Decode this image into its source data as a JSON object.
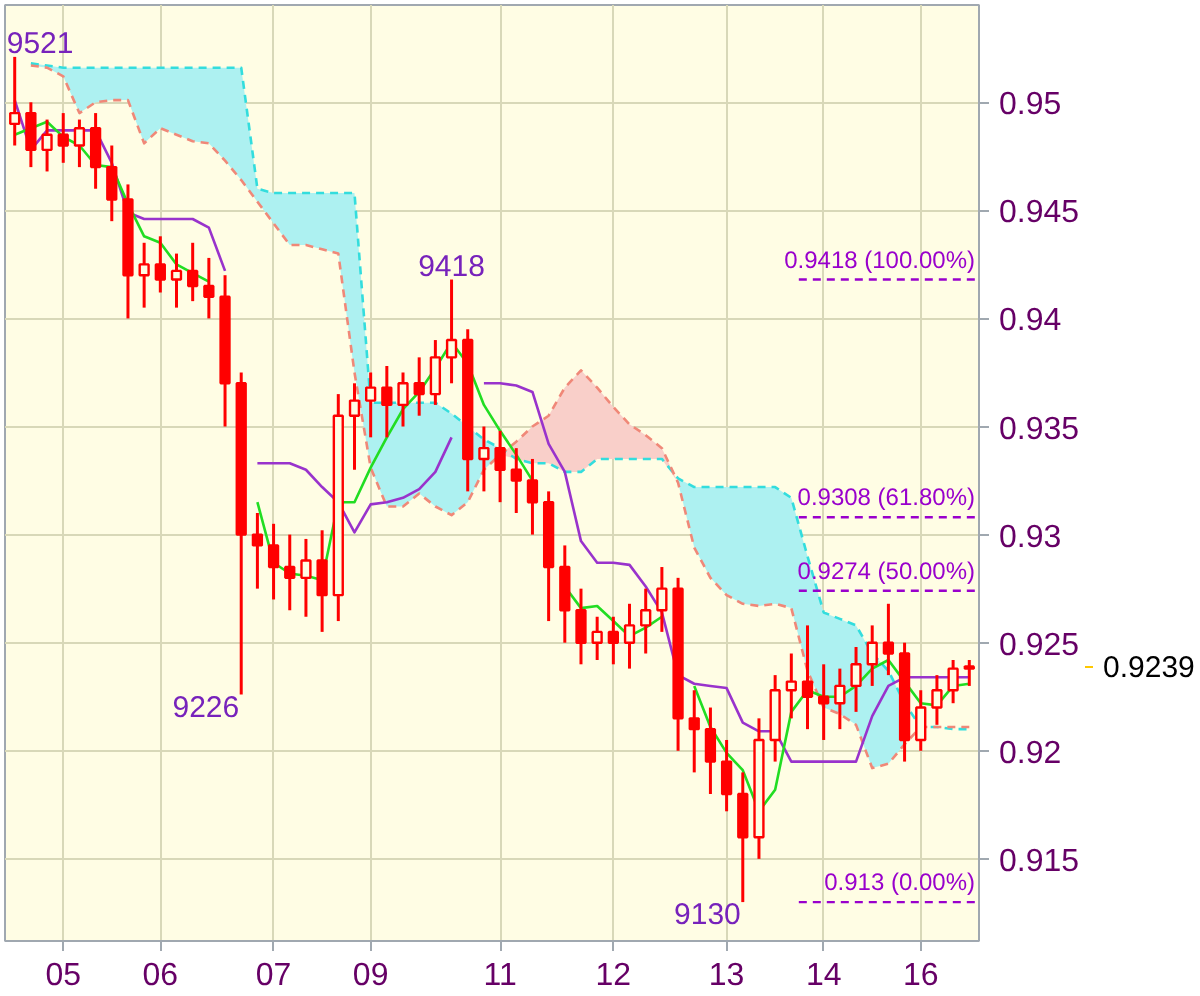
{
  "chart_data": {
    "type": "candlestick",
    "categories": [
      null,
      null,
      null,
      "05",
      null,
      null,
      null,
      null,
      null,
      "06",
      null,
      null,
      null,
      null,
      null,
      null,
      "07",
      null,
      null,
      null,
      null,
      null,
      "09",
      null,
      null,
      null,
      null,
      null,
      null,
      null,
      "11",
      null,
      null,
      null,
      null,
      null,
      null,
      "12",
      null,
      null,
      null,
      null,
      null,
      null,
      "13",
      null,
      null,
      null,
      null,
      null,
      "14",
      null,
      null,
      null,
      null,
      null,
      "16",
      null,
      null,
      null
    ],
    "ohlc": [
      [
        0.949,
        0.9521,
        0.948,
        0.9495
      ],
      [
        0.9495,
        0.95,
        0.947,
        0.9478
      ],
      [
        0.9478,
        0.9492,
        0.9468,
        0.9485
      ],
      [
        0.9485,
        0.9495,
        0.9472,
        0.948
      ],
      [
        0.948,
        0.9492,
        0.947,
        0.9488
      ],
      [
        0.9488,
        0.9495,
        0.946,
        0.947
      ],
      [
        0.947,
        0.948,
        0.9445,
        0.9455
      ],
      [
        0.9455,
        0.9462,
        0.94,
        0.942
      ],
      [
        0.942,
        0.9435,
        0.9405,
        0.9425
      ],
      [
        0.9425,
        0.9438,
        0.9412,
        0.9418
      ],
      [
        0.9418,
        0.943,
        0.9405,
        0.9422
      ],
      [
        0.9422,
        0.9435,
        0.9408,
        0.9415
      ],
      [
        0.9415,
        0.9428,
        0.94,
        0.941
      ],
      [
        0.941,
        0.942,
        0.935,
        0.937
      ],
      [
        0.937,
        0.9375,
        0.9226,
        0.93
      ],
      [
        0.93,
        0.931,
        0.9275,
        0.9295
      ],
      [
        0.9295,
        0.9305,
        0.927,
        0.9285
      ],
      [
        0.9285,
        0.93,
        0.9265,
        0.928
      ],
      [
        0.928,
        0.9298,
        0.9262,
        0.9288
      ],
      [
        0.9288,
        0.9302,
        0.9255,
        0.9272
      ],
      [
        0.9272,
        0.9365,
        0.926,
        0.9355
      ],
      [
        0.9355,
        0.937,
        0.933,
        0.9362
      ],
      [
        0.9362,
        0.9375,
        0.9345,
        0.9368
      ],
      [
        0.9368,
        0.9378,
        0.9345,
        0.936
      ],
      [
        0.936,
        0.9375,
        0.935,
        0.937
      ],
      [
        0.937,
        0.9382,
        0.9355,
        0.9365
      ],
      [
        0.9365,
        0.939,
        0.936,
        0.9382
      ],
      [
        0.9382,
        0.9418,
        0.937,
        0.939
      ],
      [
        0.939,
        0.9395,
        0.932,
        0.9335
      ],
      [
        0.9335,
        0.935,
        0.932,
        0.934
      ],
      [
        0.934,
        0.9348,
        0.9315,
        0.933
      ],
      [
        0.933,
        0.934,
        0.931,
        0.9325
      ],
      [
        0.9325,
        0.9335,
        0.93,
        0.9315
      ],
      [
        0.9315,
        0.932,
        0.926,
        0.9285
      ],
      [
        0.9285,
        0.9295,
        0.925,
        0.9265
      ],
      [
        0.9265,
        0.9275,
        0.924,
        0.925
      ],
      [
        0.925,
        0.9262,
        0.9242,
        0.9255
      ],
      [
        0.9255,
        0.9262,
        0.924,
        0.925
      ],
      [
        0.925,
        0.9268,
        0.9238,
        0.9258
      ],
      [
        0.9258,
        0.9275,
        0.9245,
        0.9265
      ],
      [
        0.9265,
        0.9285,
        0.9255,
        0.9275
      ],
      [
        0.9275,
        0.928,
        0.92,
        0.9215
      ],
      [
        0.9215,
        0.9228,
        0.919,
        0.921
      ],
      [
        0.921,
        0.922,
        0.918,
        0.9195
      ],
      [
        0.9195,
        0.9205,
        0.9172,
        0.918
      ],
      [
        0.918,
        0.919,
        0.913,
        0.916
      ],
      [
        0.916,
        0.9215,
        0.915,
        0.9205
      ],
      [
        0.9205,
        0.9235,
        0.9195,
        0.9228
      ],
      [
        0.9228,
        0.9245,
        0.9215,
        0.9232
      ],
      [
        0.9232,
        0.9258,
        0.921,
        0.9225
      ],
      [
        0.9225,
        0.924,
        0.9205,
        0.9222
      ],
      [
        0.9222,
        0.9238,
        0.921,
        0.923
      ],
      [
        0.923,
        0.9248,
        0.9218,
        0.924
      ],
      [
        0.924,
        0.9258,
        0.923,
        0.925
      ],
      [
        0.925,
        0.9268,
        0.9235,
        0.9245
      ],
      [
        0.9245,
        0.925,
        0.9195,
        0.9205
      ],
      [
        0.9205,
        0.9228,
        0.92,
        0.922
      ],
      [
        0.922,
        0.9235,
        0.9212,
        0.9228
      ],
      [
        0.9228,
        0.9242,
        0.9222,
        0.9238
      ],
      [
        0.9238,
        0.9242,
        0.923,
        0.9239
      ]
    ],
    "color": "#ff0000",
    "series": [
      {
        "type": "line",
        "color": "#33dddd",
        "line_style": "dashed",
        "values": [
          null,
          0.9518,
          0.9517,
          0.9516,
          0.9516,
          0.9516,
          0.9516,
          0.9516,
          0.9516,
          0.9516,
          0.9516,
          0.9516,
          0.9516,
          0.9516,
          0.9516,
          0.946,
          0.9458,
          0.9458,
          0.9458,
          0.9458,
          0.9458,
          0.9458,
          0.9361,
          0.9361,
          0.9361,
          0.9361,
          0.9361,
          0.9356,
          0.935,
          0.9344,
          0.934,
          0.9335,
          0.9333,
          0.9333,
          0.9329,
          0.9329,
          0.9335,
          0.9335,
          0.9335,
          0.9335,
          0.9335,
          0.9326,
          0.9322,
          0.9322,
          0.9322,
          0.9322,
          0.9322,
          0.9322,
          0.9317,
          0.929,
          0.9264,
          0.9261,
          0.9258,
          0.9245,
          0.9237,
          0.9222,
          0.9211,
          0.9211,
          0.921,
          0.921
        ],
        "upper": [
          null,
          0.9518,
          0.9517,
          0.9516,
          0.9516,
          0.9516,
          0.9516,
          0.9516,
          0.9516,
          0.9516,
          0.9516,
          0.9516,
          0.9516,
          0.9516,
          0.9516,
          0.946,
          0.9458,
          0.9458,
          0.9458,
          0.9458,
          0.9458,
          0.9458,
          0.9361,
          0.9361,
          0.9361,
          0.9361,
          0.9361,
          0.9356,
          0.935,
          0.9344,
          0.934,
          null,
          null,
          null,
          null,
          null,
          null,
          null,
          null,
          null,
          null,
          0.9326,
          0.9322,
          0.9322,
          0.9322,
          0.9322,
          0.9322,
          0.9322,
          0.9317,
          0.929,
          0.9264,
          0.9261,
          0.9258,
          0.9245,
          0.9237,
          0.9222,
          null,
          null,
          null,
          null
        ],
        "lower": [
          null,
          0.9517,
          0.9516,
          0.9512,
          0.9495,
          0.95,
          0.9501,
          0.9501,
          0.9481,
          0.9488,
          0.9485,
          0.9482,
          0.9481,
          0.9473,
          0.9464,
          0.9454,
          0.9444,
          0.9434,
          0.9434,
          0.9432,
          0.943,
          0.9375,
          0.9331,
          0.9313,
          0.9313,
          0.9319,
          0.9313,
          0.9309,
          0.9315,
          0.933,
          0.9337,
          null,
          null,
          null,
          null,
          null,
          null,
          null,
          null,
          null,
          null,
          0.9324,
          0.9294,
          0.928,
          0.9272,
          0.9268,
          0.9267,
          0.9268,
          0.9266,
          0.9237,
          0.922,
          0.9217,
          0.9212,
          0.9192,
          0.9194,
          0.9203,
          null,
          null,
          null,
          null
        ]
      },
      {
        "type": "line",
        "color": "#f08878",
        "line_style": "dashed",
        "values": [
          null,
          0.9517,
          0.9516,
          0.9512,
          0.9495,
          0.95,
          0.9501,
          0.9501,
          0.9481,
          0.9488,
          0.9485,
          0.9482,
          0.9481,
          0.9473,
          0.9464,
          0.9454,
          0.9444,
          0.9434,
          0.9434,
          0.9432,
          0.943,
          0.9375,
          0.9331,
          0.9313,
          0.9313,
          0.9319,
          0.9313,
          0.9309,
          0.9315,
          0.933,
          0.9337,
          0.9343,
          0.935,
          0.9355,
          0.9368,
          0.9376,
          0.9368,
          0.9359,
          0.9351,
          0.9346,
          0.934,
          0.9324,
          0.9294,
          0.928,
          0.9272,
          0.9268,
          0.9267,
          0.9268,
          0.9266,
          0.9237,
          0.922,
          0.9217,
          0.9212,
          0.9192,
          0.9194,
          0.9203,
          0.9211,
          0.9211,
          0.9211,
          0.9211
        ],
        "upper": [
          null,
          null,
          null,
          null,
          null,
          null,
          null,
          null,
          null,
          null,
          null,
          null,
          null,
          null,
          null,
          null,
          null,
          null,
          null,
          null,
          null,
          null,
          null,
          null,
          null,
          null,
          null,
          null,
          null,
          null,
          0.9337,
          0.9343,
          0.935,
          0.9355,
          0.9368,
          0.9376,
          0.9368,
          0.9359,
          0.9351,
          0.9346,
          0.934,
          0.9324,
          null,
          null,
          null,
          null,
          null,
          null,
          null,
          null,
          null,
          null,
          null,
          null,
          null,
          null,
          null,
          null,
          null,
          null
        ],
        "lower": [
          null,
          null,
          null,
          null,
          null,
          null,
          null,
          null,
          null,
          null,
          null,
          null,
          null,
          null,
          null,
          null,
          null,
          null,
          null,
          null,
          null,
          null,
          null,
          null,
          null,
          null,
          null,
          null,
          null,
          null,
          0.9337,
          0.9335,
          0.9333,
          0.9333,
          0.9329,
          0.9329,
          0.9335,
          0.9335,
          0.9335,
          0.9335,
          0.9335,
          0.9324,
          null,
          null,
          null,
          null,
          null,
          null,
          null,
          null,
          null,
          null,
          null,
          null,
          null,
          null,
          null,
          null,
          null,
          null
        ]
      },
      {
        "type": "line",
        "color": "#9933cc",
        "values": [
          0.9501,
          0.9478,
          0.9487,
          0.9487,
          0.9487,
          0.9487,
          0.9472,
          0.9449,
          0.9446,
          0.9446,
          0.9446,
          0.9446,
          0.9442,
          0.9422,
          null,
          0.9333,
          0.9333,
          0.9333,
          0.933,
          0.9322,
          0.9315,
          0.9301,
          0.9314,
          0.9315,
          0.9317,
          0.9321,
          0.9329,
          0.9345,
          null,
          0.937,
          0.937,
          0.9369,
          0.9366,
          0.9342,
          0.9329,
          0.9297,
          0.9287,
          0.9287,
          0.9286,
          0.9276,
          0.9264,
          0.9235,
          0.9231,
          0.923,
          0.9229,
          0.9213,
          0.9209,
          0.9209,
          0.9195,
          0.9195,
          0.9195,
          0.9195,
          0.9195,
          0.9216,
          0.923,
          0.9234,
          0.9234,
          0.9234,
          0.9234,
          0.9234
        ]
      },
      {
        "type": "line",
        "color": "#22dd22",
        "values": [
          0.9485,
          0.9488,
          0.9491,
          0.9484,
          0.948,
          0.9471,
          0.947,
          0.9453,
          0.9438,
          0.9435,
          0.9425,
          0.9421,
          0.9417,
          null,
          null,
          0.9315,
          0.9287,
          0.9282,
          0.9281,
          0.9279,
          0.9315,
          0.9315,
          0.9331,
          0.9345,
          0.9358,
          0.9366,
          0.9377,
          0.9389,
          0.9379,
          0.936,
          0.9348,
          0.9337,
          0.9325,
          null,
          0.9276,
          0.9266,
          0.9267,
          0.926,
          0.9253,
          0.9257,
          0.9262,
          null,
          0.923,
          0.9211,
          0.9199,
          0.9191,
          0.9172,
          0.9182,
          0.9218,
          0.9228,
          0.9225,
          0.9225,
          0.923,
          0.9238,
          0.9242,
          0.9232,
          0.9222,
          0.9221,
          0.923,
          0.9231
        ]
      }
    ],
    "ylim": [
      0.9112,
      0.9545
    ],
    "yticks": [
      0.915,
      0.92,
      0.925,
      0.93,
      0.935,
      0.94,
      0.945,
      0.95
    ],
    "grid": true,
    "ref_lines": [
      {
        "axis": "y",
        "value": 0.9418,
        "label": "0.9418 (100.00%)",
        "color": "#9900cc",
        "line_style": "dashed"
      },
      {
        "axis": "y",
        "value": 0.9308,
        "label": "0.9308 (61.80%)",
        "color": "#9900cc",
        "line_style": "dashed"
      },
      {
        "axis": "y",
        "value": 0.9274,
        "label": "0.9274 (50.00%)",
        "color": "#9900cc",
        "line_style": "dashed"
      },
      {
        "axis": "y",
        "value": 0.913,
        "label": "0.913 (0.00%)",
        "color": "#9900cc",
        "line_style": "dashed"
      }
    ],
    "annotations": [
      {
        "text": "9521",
        "y": 0.9521
      },
      {
        "text": "9418",
        "y": 0.9418
      },
      "9226",
      "9130",
      "0.9239"
    ]
  }
}
